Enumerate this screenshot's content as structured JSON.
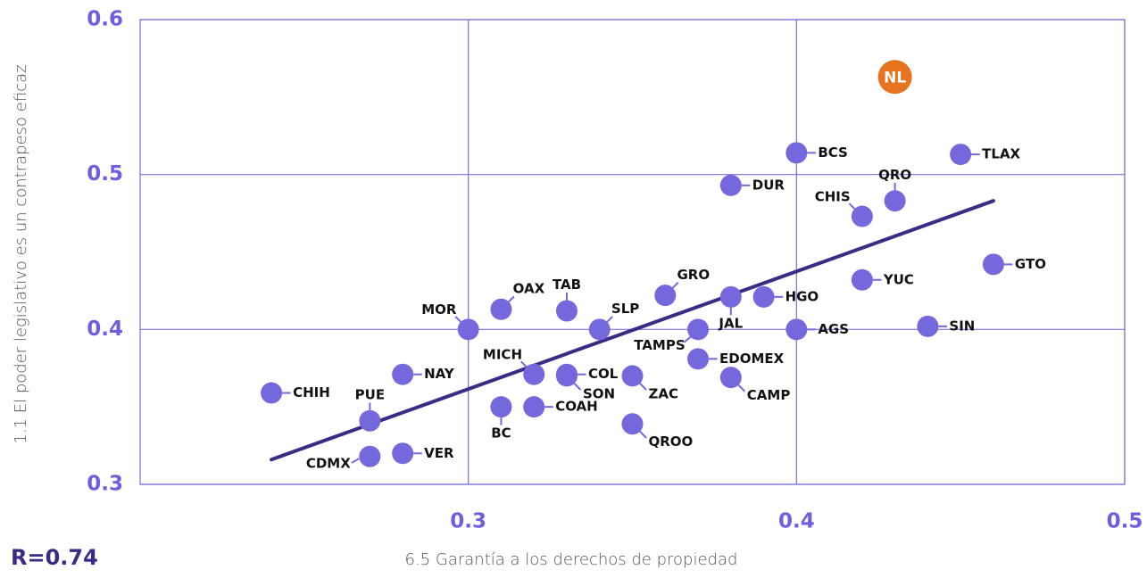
{
  "chart_data": {
    "type": "scatter",
    "x_label": "6.5  Garantía a los derechos de propiedad",
    "y_label": "1.1  El poder legislativo es un contrapeso eficaz",
    "annotation": "R=0.74",
    "xlim": [
      0.2,
      0.5
    ],
    "xticks": [
      0.3,
      0.4,
      0.5
    ],
    "ylim": [
      0.3,
      0.6
    ],
    "yticks": [
      0.3,
      0.4,
      0.5,
      0.6
    ],
    "grid": true,
    "trendline": {
      "color": "#3b2a86",
      "x": [
        0.24,
        0.46
      ],
      "y": [
        0.316,
        0.483
      ]
    },
    "series": [
      {
        "color": "#7567dc",
        "labels": [
          "CHIH",
          "PUE",
          "NAY",
          "CDMX",
          "VER",
          "MOR",
          "OAX",
          "TAB",
          "SLP",
          "MICH",
          "COL",
          "SON",
          "BC",
          "COAH",
          "ZAC",
          "QROO",
          "GRO",
          "JAL",
          "TAMPS",
          "HGO",
          "EDOMEX",
          "CAMP",
          "AGS",
          "DUR",
          "BCS",
          "CHIS",
          "QRO",
          "TLAX",
          "GTO",
          "YUC",
          "SIN"
        ],
        "x": [
          0.24,
          0.27,
          0.28,
          0.27,
          0.28,
          0.3,
          0.31,
          0.33,
          0.34,
          0.32,
          0.33,
          0.33,
          0.31,
          0.32,
          0.35,
          0.35,
          0.36,
          0.38,
          0.37,
          0.39,
          0.37,
          0.38,
          0.4,
          0.38,
          0.4,
          0.42,
          0.43,
          0.45,
          0.46,
          0.42,
          0.44
        ],
        "y": [
          0.359,
          0.341,
          0.371,
          0.318,
          0.32,
          0.4,
          0.413,
          0.412,
          0.4,
          0.371,
          0.371,
          0.37,
          0.35,
          0.35,
          0.37,
          0.339,
          0.422,
          0.421,
          0.4,
          0.421,
          0.381,
          0.369,
          0.4,
          0.493,
          0.514,
          0.473,
          0.483,
          0.513,
          0.442,
          0.432,
          0.402
        ]
      },
      {
        "color": "#e8731f",
        "labels": [
          "NL"
        ],
        "x": [
          0.43
        ],
        "y": [
          0.563
        ]
      }
    ]
  }
}
